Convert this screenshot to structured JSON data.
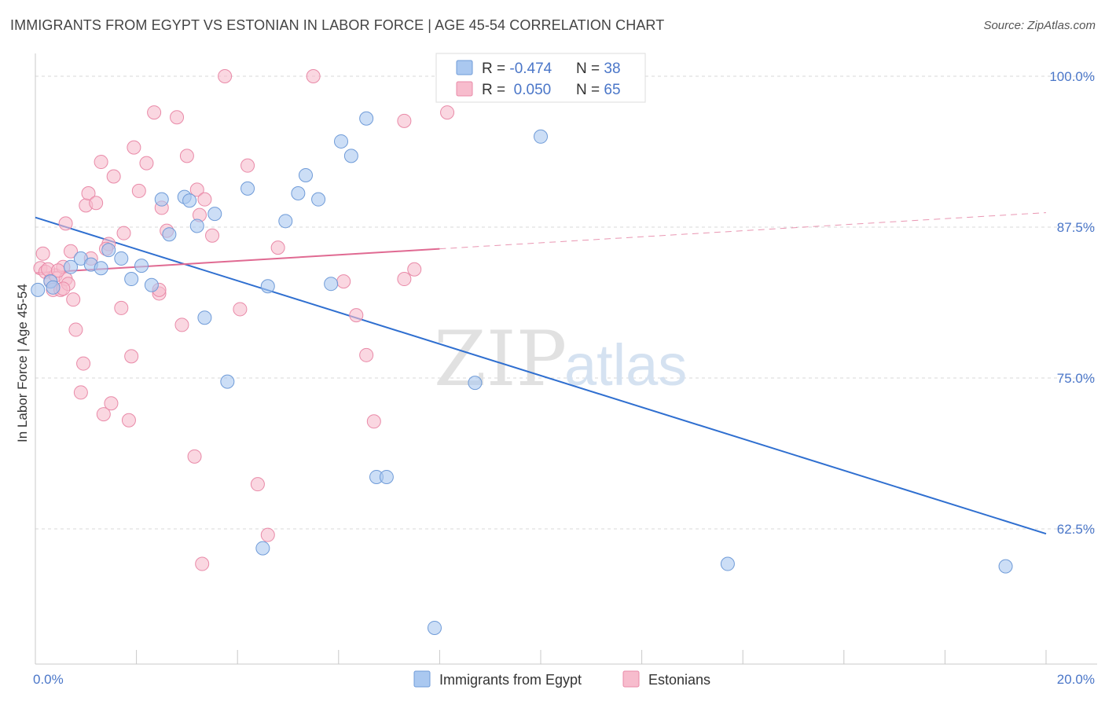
{
  "title": "IMMIGRANTS FROM EGYPT VS ESTONIAN IN LABOR FORCE | AGE 45-54 CORRELATION CHART",
  "source": "Source: ZipAtlas.com",
  "watermark": {
    "zip": "ZIP",
    "atlas": "atlas"
  },
  "colors": {
    "egypt_fill": "#aac8f0",
    "egypt_stroke": "#6f9bd8",
    "egypt_line": "#2f6fd0",
    "eston_fill": "#f7bccd",
    "eston_stroke": "#e98aa8",
    "eston_line": "#e06a92",
    "axis_text": "#4a76c8",
    "grid": "#d8d8d8"
  },
  "legend": {
    "rows": [
      {
        "r_label": "R = ",
        "r_value": "-0.474",
        "n_label": "N = ",
        "n_value": "38"
      },
      {
        "r_label": "R = ",
        "r_value": " 0.050",
        "n_label": "N = ",
        "n_value": "65"
      }
    ]
  },
  "chart_data": {
    "type": "scatter",
    "xlim": [
      0.0,
      20.0
    ],
    "ylim": [
      51.0,
      101.0
    ],
    "x_ticks": [
      "0.0%",
      "20.0%"
    ],
    "y_ticks": [
      {
        "value": 100.0,
        "label": "100.0%"
      },
      {
        "value": 87.5,
        "label": "87.5%"
      },
      {
        "value": 75.0,
        "label": "75.0%"
      },
      {
        "value": 62.5,
        "label": "62.5%"
      }
    ],
    "ylabel": "In Labor Force | Age 45-54",
    "grid": "horizontal dashed",
    "legend_position": "top-center",
    "series": [
      {
        "name": "Immigrants from Egypt",
        "points": [
          [
            0.05,
            82.3
          ],
          [
            0.3,
            83.0
          ],
          [
            0.35,
            82.5
          ],
          [
            0.7,
            84.2
          ],
          [
            0.9,
            84.9
          ],
          [
            1.1,
            84.4
          ],
          [
            1.3,
            84.1
          ],
          [
            1.45,
            85.6
          ],
          [
            1.7,
            84.9
          ],
          [
            1.9,
            83.2
          ],
          [
            2.1,
            84.3
          ],
          [
            2.3,
            82.7
          ],
          [
            2.5,
            89.8
          ],
          [
            2.65,
            86.9
          ],
          [
            2.95,
            90.0
          ],
          [
            3.05,
            89.7
          ],
          [
            3.2,
            87.6
          ],
          [
            3.35,
            80.0
          ],
          [
            3.55,
            88.6
          ],
          [
            3.8,
            74.7
          ],
          [
            4.2,
            90.7
          ],
          [
            4.5,
            60.9
          ],
          [
            4.6,
            82.6
          ],
          [
            4.95,
            88.0
          ],
          [
            5.2,
            90.3
          ],
          [
            5.35,
            91.8
          ],
          [
            5.6,
            89.8
          ],
          [
            5.85,
            82.8
          ],
          [
            6.05,
            94.6
          ],
          [
            6.25,
            93.4
          ],
          [
            6.55,
            96.5
          ],
          [
            6.75,
            66.8
          ],
          [
            6.95,
            66.8
          ],
          [
            7.9,
            54.3
          ],
          [
            8.7,
            74.6
          ],
          [
            10.0,
            95.0
          ],
          [
            13.7,
            59.6
          ],
          [
            19.2,
            59.4
          ]
        ],
        "trend": {
          "x0": 0.0,
          "y0": 88.3,
          "x1": 20.0,
          "y1": 62.1
        }
      },
      {
        "name": "Estonians",
        "points": [
          [
            0.1,
            84.1
          ],
          [
            0.15,
            85.3
          ],
          [
            0.2,
            83.8
          ],
          [
            0.3,
            83.1
          ],
          [
            0.35,
            82.3
          ],
          [
            0.4,
            83.5
          ],
          [
            0.5,
            82.3
          ],
          [
            0.55,
            84.2
          ],
          [
            0.6,
            83.2
          ],
          [
            0.65,
            82.8
          ],
          [
            0.6,
            87.8
          ],
          [
            0.7,
            85.5
          ],
          [
            0.75,
            81.5
          ],
          [
            0.8,
            79.0
          ],
          [
            0.9,
            73.8
          ],
          [
            0.95,
            76.2
          ],
          [
            1.0,
            89.3
          ],
          [
            1.05,
            90.3
          ],
          [
            1.1,
            84.9
          ],
          [
            1.2,
            89.5
          ],
          [
            1.3,
            92.9
          ],
          [
            1.35,
            72.0
          ],
          [
            1.45,
            86.1
          ],
          [
            1.5,
            72.9
          ],
          [
            1.55,
            91.7
          ],
          [
            1.7,
            80.8
          ],
          [
            1.75,
            87.0
          ],
          [
            1.85,
            71.5
          ],
          [
            1.9,
            76.8
          ],
          [
            1.95,
            94.1
          ],
          [
            2.05,
            90.5
          ],
          [
            2.2,
            92.8
          ],
          [
            2.35,
            97.0
          ],
          [
            2.45,
            82.0
          ],
          [
            2.5,
            89.1
          ],
          [
            2.6,
            87.2
          ],
          [
            2.8,
            96.6
          ],
          [
            2.9,
            79.4
          ],
          [
            3.0,
            93.4
          ],
          [
            3.15,
            68.5
          ],
          [
            3.2,
            90.6
          ],
          [
            3.25,
            88.5
          ],
          [
            3.3,
            59.6
          ],
          [
            3.35,
            89.8
          ],
          [
            3.5,
            86.8
          ],
          [
            3.75,
            100.0
          ],
          [
            4.05,
            80.7
          ],
          [
            4.2,
            92.6
          ],
          [
            4.4,
            66.2
          ],
          [
            4.6,
            62.0
          ],
          [
            4.8,
            85.8
          ],
          [
            5.5,
            100.0
          ],
          [
            6.1,
            83.0
          ],
          [
            6.35,
            80.2
          ],
          [
            6.55,
            76.9
          ],
          [
            6.7,
            71.4
          ],
          [
            7.3,
            96.3
          ],
          [
            7.3,
            83.2
          ],
          [
            7.5,
            84.0
          ],
          [
            8.15,
            97.0
          ],
          [
            2.45,
            82.3
          ],
          [
            1.4,
            85.7
          ],
          [
            0.25,
            84.0
          ],
          [
            0.45,
            83.9
          ],
          [
            0.55,
            82.4
          ]
        ],
        "trend": {
          "x0": 0.0,
          "y0": 83.7,
          "x1": 8.0,
          "y1": 85.7,
          "dash_to_x": 20.0,
          "dash_to_y": 88.7
        }
      }
    ]
  }
}
